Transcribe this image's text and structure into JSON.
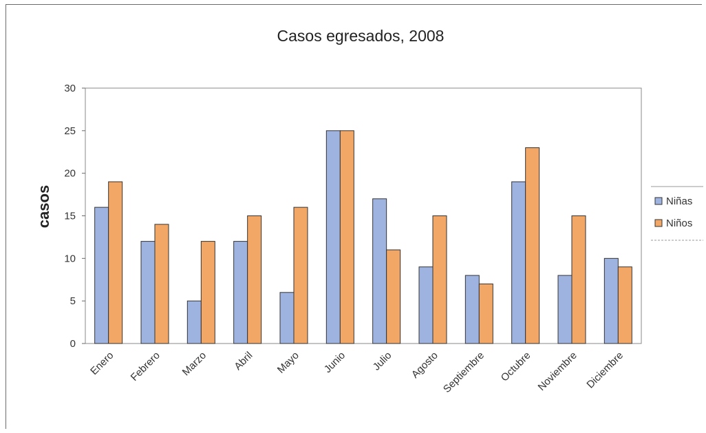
{
  "chart_data": {
    "type": "bar",
    "title": "Casos egresados, 2008",
    "xlabel": "",
    "ylabel": "casos",
    "ylim": [
      0,
      30
    ],
    "yticks": [
      "0",
      "5",
      "10",
      "15",
      "20",
      "25",
      "30"
    ],
    "categories": [
      "Enero",
      "Febrero",
      "Marzo",
      "Abril",
      "Mayo",
      "Junio",
      "Julio",
      "Agosto",
      "Septiembre",
      "Octubre",
      "Noviembre",
      "Diciembre"
    ],
    "series": [
      {
        "name": "Niñas",
        "color": "#9fb3e0",
        "values": [
          16,
          12,
          5,
          12,
          6,
          25,
          17,
          9,
          8,
          19,
          8,
          10
        ]
      },
      {
        "name": "Niños",
        "color": "#f2a766",
        "values": [
          19,
          14,
          12,
          15,
          16,
          25,
          11,
          15,
          7,
          23,
          15,
          9
        ]
      }
    ],
    "grid": false,
    "legend": "right"
  }
}
